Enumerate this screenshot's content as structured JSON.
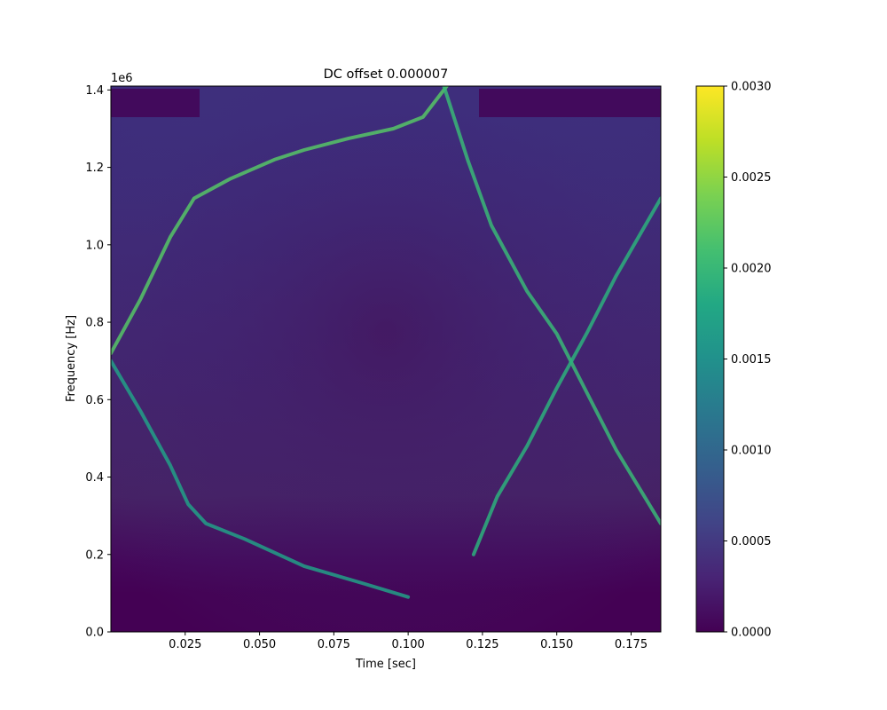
{
  "chart_data": {
    "type": "heatmap",
    "title": "DC offset 0.000007",
    "xlabel": "Time [sec]",
    "ylabel": "Frequency [Hz]",
    "y_offset_text": "1e6",
    "xlim": [
      0.0,
      0.185
    ],
    "ylim": [
      0.0,
      1.41
    ],
    "x_ticks": [
      0.025,
      0.05,
      0.075,
      0.1,
      0.125,
      0.15,
      0.175
    ],
    "x_tick_labels": [
      "0.025",
      "0.050",
      "0.075",
      "0.100",
      "0.125",
      "0.150",
      "0.175"
    ],
    "y_ticks": [
      0.0,
      0.2,
      0.4,
      0.6,
      0.8,
      1.0,
      1.2,
      1.4
    ],
    "y_tick_labels": [
      "0.0",
      "0.2",
      "0.4",
      "0.6",
      "0.8",
      "1.0",
      "1.2",
      "1.4"
    ],
    "colorbar": {
      "colormap": "viridis",
      "range": [
        0.0,
        0.003
      ],
      "ticks": [
        0.0,
        0.0005,
        0.001,
        0.0015,
        0.002,
        0.0025,
        0.003
      ],
      "tick_labels": [
        "0.0000",
        "0.0005",
        "0.0010",
        "0.0015",
        "0.0020",
        "0.0025",
        "0.0030"
      ]
    },
    "background_level": 0.0004,
    "grid": false,
    "series": [
      {
        "x": [
          0.0,
          0.01,
          0.02,
          0.028,
          0.04,
          0.055,
          0.065,
          0.08,
          0.095,
          0.105,
          0.113
        ],
        "y": [
          0.72,
          0.86,
          1.02,
          1.12,
          1.17,
          1.22,
          1.245,
          1.275,
          1.3,
          1.33,
          1.41
        ],
        "intensity": 0.0022
      },
      {
        "x": [
          0.0,
          0.01,
          0.02,
          0.026,
          0.032,
          0.045,
          0.065,
          0.085,
          0.1
        ],
        "y": [
          0.7,
          0.57,
          0.43,
          0.33,
          0.28,
          0.24,
          0.17,
          0.125,
          0.09
        ],
        "intensity": 0.0017
      },
      {
        "x": [
          0.112,
          0.12,
          0.128,
          0.14,
          0.15,
          0.16,
          0.17,
          0.185
        ],
        "y": [
          1.41,
          1.22,
          1.05,
          0.88,
          0.77,
          0.62,
          0.47,
          0.28
        ],
        "intensity": 0.002
      },
      {
        "x": [
          0.122,
          0.13,
          0.14,
          0.15,
          0.16,
          0.17,
          0.185
        ],
        "y": [
          0.2,
          0.35,
          0.48,
          0.63,
          0.77,
          0.92,
          1.12
        ],
        "intensity": 0.0019
      }
    ]
  }
}
